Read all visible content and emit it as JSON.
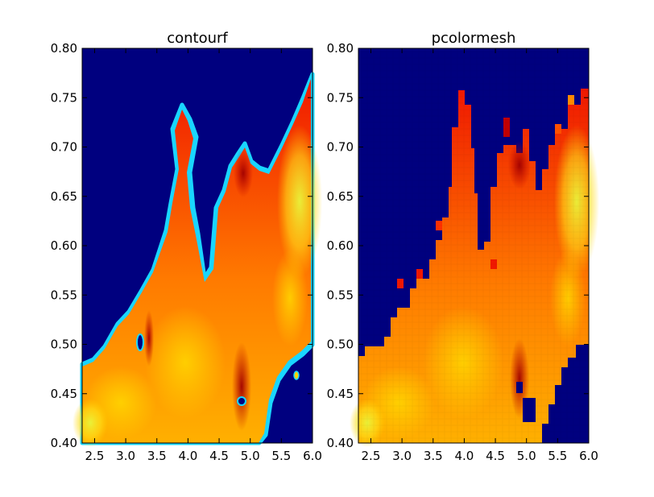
{
  "chart_data": [
    {
      "type": "heatmap",
      "title": "contourf",
      "xlim": [
        2.3,
        6.0
      ],
      "ylim": [
        0.4,
        0.8
      ],
      "xticks": [
        "2.5",
        "3.0",
        "3.5",
        "4.0",
        "4.5",
        "5.0",
        "5.5",
        "6.0"
      ],
      "yticks": [
        "0.40",
        "0.45",
        "0.50",
        "0.55",
        "0.60",
        "0.65",
        "0.70",
        "0.75",
        "0.80"
      ],
      "colormap": "jet",
      "background_color": "#00007f",
      "grid": false,
      "rendering": "filled-contours"
    },
    {
      "type": "heatmap",
      "title": "pcolormesh",
      "xlim": [
        2.3,
        6.0
      ],
      "ylim": [
        0.4,
        0.8
      ],
      "xticks": [
        "2.5",
        "3.0",
        "3.5",
        "4.0",
        "4.5",
        "5.0",
        "5.5",
        "6.0"
      ],
      "yticks": [
        "0.40",
        "0.45",
        "0.50",
        "0.55",
        "0.60",
        "0.65",
        "0.70",
        "0.75",
        "0.80"
      ],
      "colormap": "jet",
      "background_color": "#00007f",
      "grid": false,
      "rendering": "quadrilateral-mesh"
    }
  ]
}
